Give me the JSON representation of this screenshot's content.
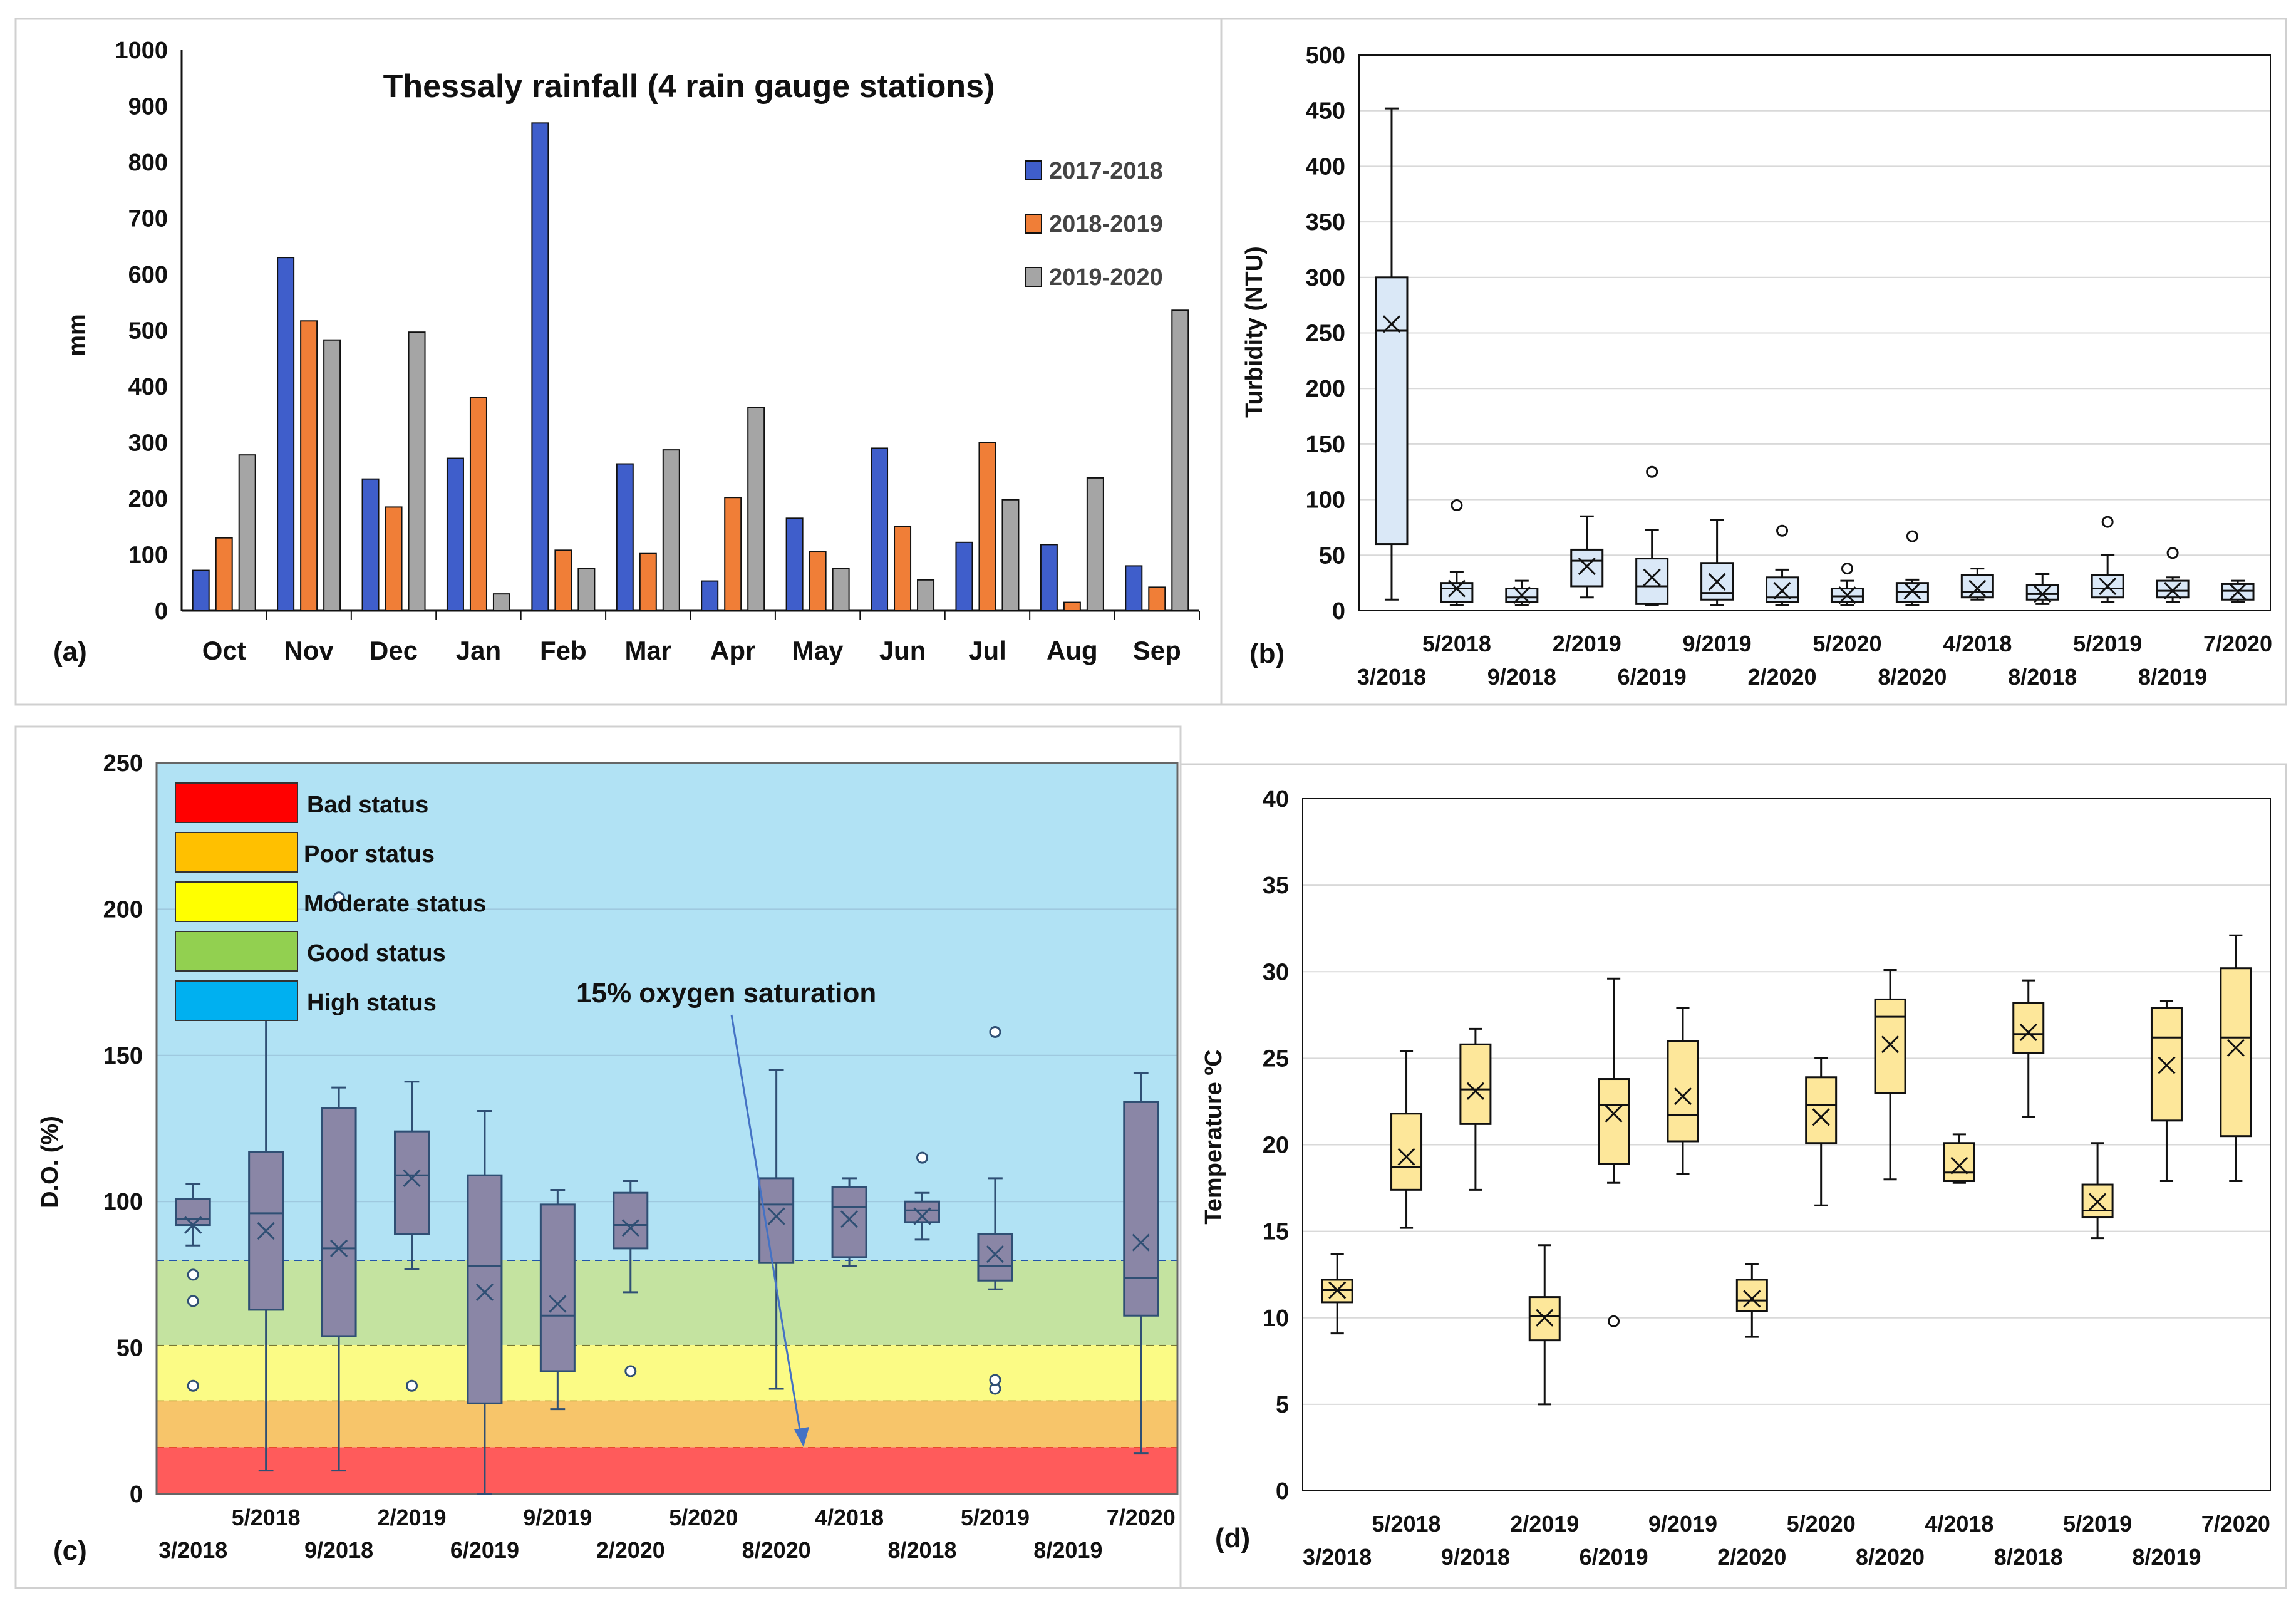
{
  "panels": {
    "a": {
      "letter": "(a)",
      "chart_data": {
        "type": "bar",
        "title": "Thessaly rainfall (4 rain gauge stations)",
        "ylabel": "mm",
        "ylim": [
          0,
          1000
        ],
        "yticks": [
          0,
          100,
          200,
          300,
          400,
          500,
          600,
          700,
          800,
          900,
          1000
        ],
        "categories": [
          "Oct",
          "Nov",
          "Dec",
          "Jan",
          "Feb",
          "Mar",
          "Apr",
          "May",
          "Jun",
          "Jul",
          "Aug",
          "Sep"
        ],
        "series": [
          {
            "name": "2017-2018",
            "color": "#3f5ecb",
            "values": [
              72,
              630,
              235,
              272,
              870,
              262,
              53,
              165,
              290,
              122,
              118,
              80
            ]
          },
          {
            "name": "2018-2019",
            "color": "#f07e37",
            "values": [
              130,
              517,
              185,
              380,
              108,
              102,
              202,
              105,
              150,
              300,
              15,
              42
            ]
          },
          {
            "name": "2019-2020",
            "color": "#a5a5a5",
            "values": [
              278,
              483,
              497,
              30,
              75,
              287,
              363,
              75,
              55,
              198,
              237,
              536
            ]
          }
        ],
        "legend_position": "right"
      }
    },
    "b": {
      "letter": "(b)",
      "chart_data": {
        "type": "box",
        "ylabel": "Turbidity (NTU)",
        "ylim": [
          0,
          500
        ],
        "yticks": [
          0,
          50,
          100,
          150,
          200,
          250,
          300,
          350,
          400,
          450,
          500
        ],
        "box_color": "#dae8f7",
        "categories": [
          "3/2018",
          "5/2018",
          "9/2018",
          "2/2019",
          "6/2019",
          "9/2019",
          "2/2020",
          "5/2020",
          "8/2020",
          "4/2018",
          "8/2018",
          "5/2019",
          "8/2019",
          "7/2020"
        ],
        "boxes": [
          {
            "min": 10,
            "q1": 60,
            "median": 252,
            "q3": 300,
            "max": 452,
            "mean": 258,
            "outliers": []
          },
          {
            "min": 5,
            "q1": 8,
            "median": 20,
            "q3": 25,
            "max": 35,
            "mean": 20,
            "outliers": [
              95
            ]
          },
          {
            "min": 5,
            "q1": 8,
            "median": 12,
            "q3": 20,
            "max": 27,
            "mean": 14,
            "outliers": []
          },
          {
            "min": 12,
            "q1": 22,
            "median": 45,
            "q3": 55,
            "max": 85,
            "mean": 40,
            "outliers": []
          },
          {
            "min": 5,
            "q1": 6,
            "median": 22,
            "q3": 47,
            "max": 73,
            "mean": 30,
            "outliers": [
              125
            ]
          },
          {
            "min": 5,
            "q1": 10,
            "median": 16,
            "q3": 43,
            "max": 82,
            "mean": 26,
            "outliers": []
          },
          {
            "min": 5,
            "q1": 8,
            "median": 12,
            "q3": 30,
            "max": 37,
            "mean": 18,
            "outliers": [
              72
            ]
          },
          {
            "min": 5,
            "q1": 8,
            "median": 13,
            "q3": 20,
            "max": 27,
            "mean": 14,
            "outliers": [
              38
            ]
          },
          {
            "min": 5,
            "q1": 8,
            "median": 17,
            "q3": 25,
            "max": 28,
            "mean": 18,
            "outliers": [
              67
            ]
          },
          {
            "min": 10,
            "q1": 12,
            "median": 17,
            "q3": 32,
            "max": 38,
            "mean": 20,
            "outliers": []
          },
          {
            "min": 6,
            "q1": 10,
            "median": 15,
            "q3": 23,
            "max": 33,
            "mean": 15,
            "outliers": []
          },
          {
            "min": 8,
            "q1": 12,
            "median": 20,
            "q3": 32,
            "max": 50,
            "mean": 22,
            "outliers": [
              80
            ]
          },
          {
            "min": 8,
            "q1": 12,
            "median": 18,
            "q3": 27,
            "max": 30,
            "mean": 18,
            "outliers": [
              52
            ]
          },
          {
            "min": 8,
            "q1": 10,
            "median": 18,
            "q3": 24,
            "max": 27,
            "mean": 17,
            "outliers": []
          }
        ]
      }
    },
    "c": {
      "letter": "(c)",
      "chart_data": {
        "type": "box",
        "ylabel": "D.O. (%)",
        "ylim": [
          0,
          250
        ],
        "yticks": [
          0,
          50,
          100,
          150,
          200,
          250
        ],
        "box_color": "#8a86a6",
        "categories": [
          "3/2018",
          "5/2018",
          "9/2018",
          "2/2019",
          "6/2019",
          "9/2019",
          "2/2020",
          "5/2020",
          "8/2020",
          "4/2018",
          "8/2018",
          "5/2019",
          "8/2019",
          "7/2020"
        ],
        "status_bands": [
          {
            "label": "Bad status",
            "from": 0,
            "to": 16,
            "color": "#ff5b5b",
            "line": "#e01010"
          },
          {
            "label": "Poor status",
            "from": 16,
            "to": 32,
            "color": "#f7c56a",
            "line": "#b08a30"
          },
          {
            "label": "Moderate status",
            "from": 32,
            "to": 51,
            "color": "#fbfb85",
            "line": "#777733"
          },
          {
            "label": "Good status",
            "from": 51,
            "to": 80,
            "color": "#c4e3a0",
            "line": "#2255aa"
          },
          {
            "label": "High status",
            "from": 80,
            "to": 250,
            "color": "#b1e2f4",
            "line": ""
          }
        ],
        "legend_swatches": [
          "#ff0000",
          "#ffc000",
          "#ffff00",
          "#92d050",
          "#00b0f0"
        ],
        "annotation": "15% oxygen saturation",
        "boxes": [
          {
            "slot": 0,
            "min": 85,
            "q1": 92,
            "median": 94,
            "q3": 101,
            "max": 106,
            "mean": 92,
            "outliers": [
              37,
              66,
              75
            ]
          },
          {
            "slot": 1,
            "min": 8,
            "q1": 63,
            "median": 96,
            "q3": 117,
            "max": 165,
            "mean": 90,
            "outliers": []
          },
          {
            "slot": 2,
            "min": 8,
            "q1": 54,
            "median": 84,
            "q3": 132,
            "max": 139,
            "mean": 84,
            "outliers": [
              204
            ]
          },
          {
            "slot": 3,
            "min": 77,
            "q1": 89,
            "median": 109,
            "q3": 124,
            "max": 141,
            "mean": 108,
            "outliers": [
              37
            ]
          },
          {
            "slot": 4,
            "min": 0,
            "q1": 31,
            "median": 78,
            "q3": 109,
            "max": 131,
            "mean": 69,
            "outliers": []
          },
          {
            "slot": 5,
            "min": 29,
            "q1": 42,
            "median": 61,
            "q3": 99,
            "max": 104,
            "mean": 65,
            "outliers": []
          },
          {
            "slot": 6,
            "min": 69,
            "q1": 84,
            "median": 92,
            "q3": 103,
            "max": 107,
            "mean": 91,
            "outliers": [
              42
            ]
          },
          {
            "slot": 8,
            "min": 36,
            "q1": 79,
            "median": 99,
            "q3": 108,
            "max": 145,
            "mean": 95,
            "outliers": []
          },
          {
            "slot": 9,
            "min": 78,
            "q1": 81,
            "median": 98,
            "q3": 105,
            "max": 108,
            "mean": 94,
            "outliers": []
          },
          {
            "slot": 10,
            "min": 87,
            "q1": 93,
            "median": 97,
            "q3": 100,
            "max": 103,
            "mean": 95,
            "outliers": [
              115
            ]
          },
          {
            "slot": 11,
            "min": 70,
            "q1": 73,
            "median": 78,
            "q3": 89,
            "max": 108,
            "mean": 82,
            "outliers": [
              158,
              36,
              39
            ]
          },
          {
            "slot": 13,
            "min": 14,
            "q1": 61,
            "median": 74,
            "q3": 134,
            "max": 144,
            "mean": 86,
            "outliers": []
          }
        ]
      }
    },
    "d": {
      "letter": "(d)",
      "chart_data": {
        "type": "box",
        "ylabel": "Temperature ºC",
        "ylim": [
          0,
          40
        ],
        "yticks": [
          0,
          5,
          10,
          15,
          20,
          25,
          30,
          35,
          40
        ],
        "box_color": "#fde79a",
        "categories": [
          "3/2018",
          "5/2018",
          "9/2018",
          "2/2019",
          "6/2019",
          "9/2019",
          "2/2020",
          "5/2020",
          "8/2020",
          "4/2018",
          "8/2018",
          "5/2019",
          "8/2019",
          "7/2020"
        ],
        "boxes": [
          {
            "min": 9.1,
            "q1": 10.9,
            "median": 11.6,
            "q3": 12.2,
            "max": 13.7,
            "mean": 11.6,
            "outliers": []
          },
          {
            "min": 15.2,
            "q1": 17.4,
            "median": 18.7,
            "q3": 21.8,
            "max": 25.4,
            "mean": 19.3,
            "outliers": []
          },
          {
            "min": 17.4,
            "q1": 21.2,
            "median": 23.2,
            "q3": 25.8,
            "max": 26.7,
            "mean": 23.1,
            "outliers": []
          },
          {
            "min": 5.0,
            "q1": 8.7,
            "median": 10.1,
            "q3": 11.2,
            "max": 14.2,
            "mean": 10.0,
            "outliers": []
          },
          {
            "min": 17.8,
            "q1": 18.9,
            "median": 22.3,
            "q3": 23.8,
            "max": 29.6,
            "mean": 21.8,
            "outliers": [
              9.8
            ]
          },
          {
            "min": 18.3,
            "q1": 20.2,
            "median": 21.7,
            "q3": 26.0,
            "max": 27.9,
            "mean": 22.8,
            "outliers": []
          },
          {
            "min": 8.9,
            "q1": 10.4,
            "median": 11.0,
            "q3": 12.2,
            "max": 13.1,
            "mean": 11.1,
            "outliers": []
          },
          {
            "min": 16.5,
            "q1": 20.1,
            "median": 22.3,
            "q3": 23.9,
            "max": 25.0,
            "mean": 21.6,
            "outliers": []
          },
          {
            "min": 18.0,
            "q1": 23.0,
            "median": 27.4,
            "q3": 28.4,
            "max": 30.1,
            "mean": 25.8,
            "outliers": []
          },
          {
            "min": 17.8,
            "q1": 17.9,
            "median": 18.4,
            "q3": 20.1,
            "max": 20.6,
            "mean": 18.8,
            "outliers": []
          },
          {
            "min": 21.6,
            "q1": 25.3,
            "median": 26.4,
            "q3": 28.2,
            "max": 29.5,
            "mean": 26.5,
            "outliers": []
          },
          {
            "min": 14.6,
            "q1": 15.8,
            "median": 16.2,
            "q3": 17.7,
            "max": 20.1,
            "mean": 16.7,
            "outliers": []
          },
          {
            "min": 17.9,
            "q1": 21.4,
            "median": 26.2,
            "q3": 27.9,
            "max": 28.3,
            "mean": 24.6,
            "outliers": []
          },
          {
            "min": 17.9,
            "q1": 20.5,
            "median": 26.2,
            "q3": 30.2,
            "max": 32.1,
            "mean": 25.6,
            "outliers": []
          }
        ]
      }
    }
  }
}
